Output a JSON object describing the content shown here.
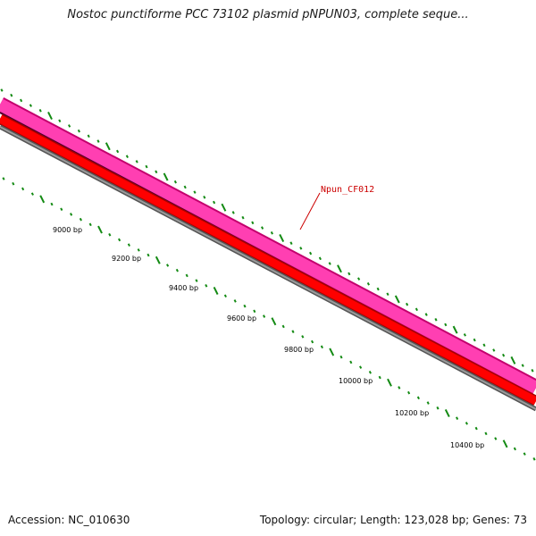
{
  "title": "Nostoc punctiforme PCC 73102 plasmid pNPUN03, complete seque...",
  "accession_text": "Accession: NC_010630",
  "summary_text": "Topology: circular; Length: 123,028 bp; Genes: 73",
  "gene_label": "Npun_CF012",
  "ruler_labels": [
    "9000 bp",
    "9200 bp",
    "9400 bp",
    "9600 bp",
    "9800 bp",
    "10000 bp",
    "10200 bp",
    "10400 bp"
  ],
  "colors": {
    "pink_track": "#ff3fb2",
    "red_track": "#ff0000",
    "gray_track": "#7a7a7a",
    "tick_green": "#138a13",
    "gene_label_red": "#cc0000"
  }
}
